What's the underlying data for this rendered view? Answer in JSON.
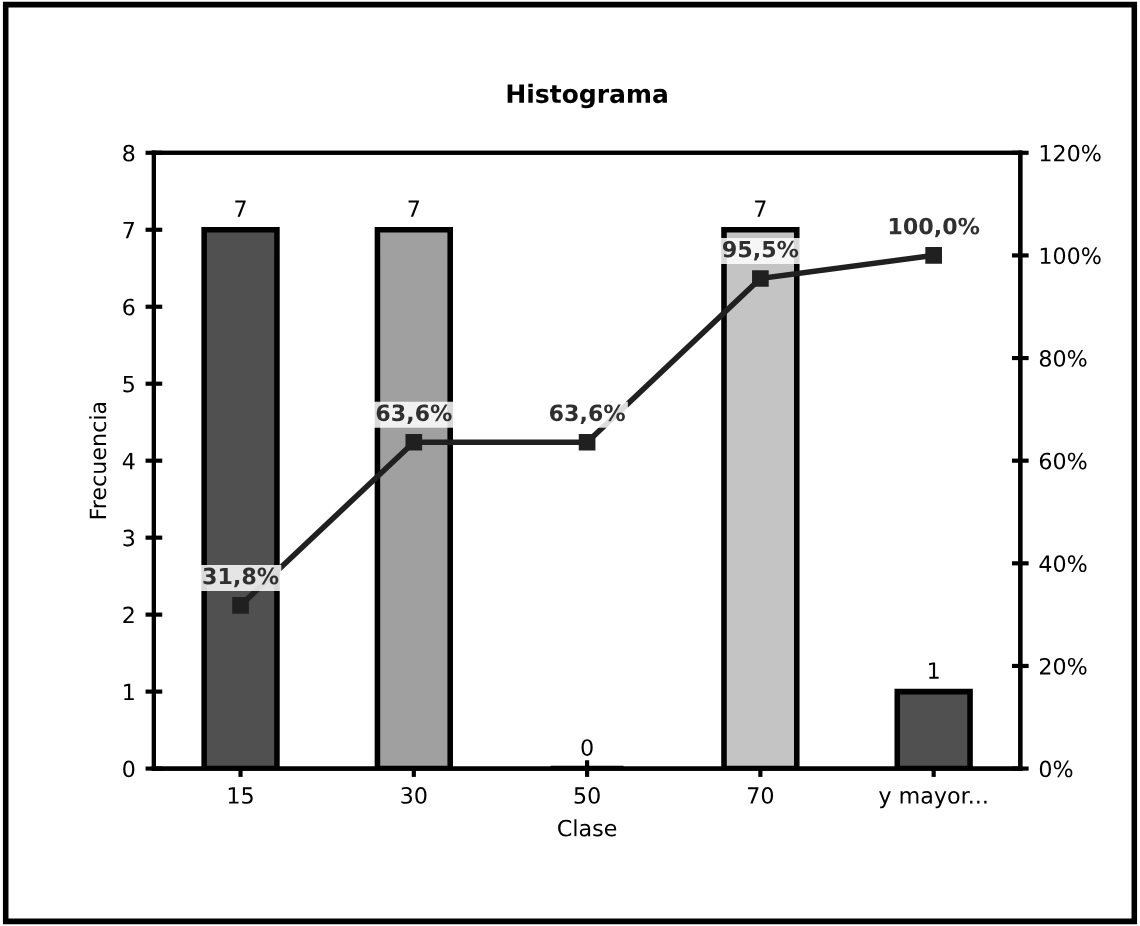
{
  "chart_data": {
    "type": "bar",
    "title": "Histograma",
    "xlabel": "Clase",
    "ylabel": "Frecuencia",
    "categories": [
      "15",
      "30",
      "50",
      "70",
      "y mayor..."
    ],
    "ylim": [
      0,
      8
    ],
    "yticks": [
      0,
      1,
      2,
      3,
      4,
      5,
      6,
      7,
      8
    ],
    "y2lim": [
      0,
      120
    ],
    "y2ticks": [
      {
        "value": 0,
        "label": "0%"
      },
      {
        "value": 20,
        "label": "20%"
      },
      {
        "value": 40,
        "label": "40%"
      },
      {
        "value": 60,
        "label": "60%"
      },
      {
        "value": 80,
        "label": "80%"
      },
      {
        "value": 100,
        "label": "100%"
      },
      {
        "value": 120,
        "label": "120%"
      }
    ],
    "grid": false,
    "legend": false,
    "series": [
      {
        "colors": [
          "#505050",
          "#a0a0a0",
          "#000000",
          "#c4c4c4",
          "#505050"
        ],
        "values": [
          7,
          7,
          0,
          7,
          1
        ],
        "value_labels": [
          "7",
          "7",
          "0",
          "7",
          "1"
        ]
      },
      {
        "type": "line",
        "axis": "y2",
        "color": "#202020",
        "marker": "square",
        "line_style": "solid",
        "values": [
          31.8,
          63.6,
          63.6,
          95.5,
          100.0
        ],
        "value_labels": [
          "31,8%",
          "63,6%",
          "63,6%",
          "95,5%",
          "100,0%"
        ]
      }
    ]
  }
}
